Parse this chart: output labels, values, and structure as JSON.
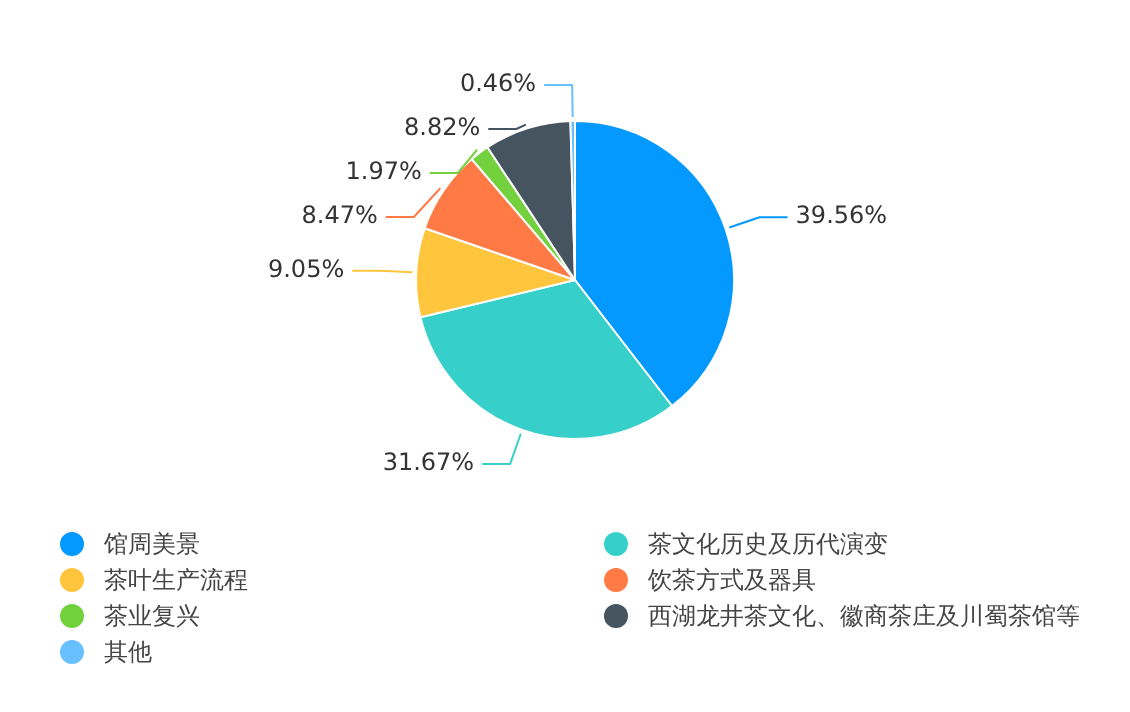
{
  "chart_data": {
    "type": "pie",
    "categories": [
      "馆周美景",
      "茶文化历史及历代演变",
      "茶叶生产流程",
      "饮茶方式及器具",
      "茶业复兴",
      "西湖龙井茶文化、徽商茶庄及川蜀茶馆等",
      "其他"
    ],
    "values": [
      39.56,
      31.67,
      9.05,
      8.47,
      1.97,
      8.82,
      0.46
    ],
    "value_labels": [
      "39.56%",
      "31.67%",
      "9.05%",
      "8.47%",
      "1.97%",
      "8.82%",
      "0.46%"
    ],
    "colors": [
      "#0399fe",
      "#36cfc9",
      "#ffc53d",
      "#ff7a45",
      "#73d13d",
      "#45545f",
      "#69c0ff"
    ],
    "legend": "bottom"
  }
}
